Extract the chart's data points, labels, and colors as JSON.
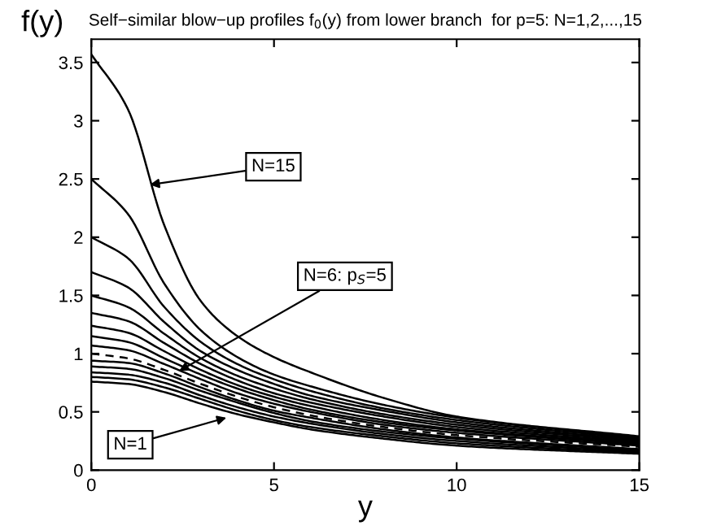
{
  "chart_data": {
    "type": "line",
    "title": "Self−similar blow−up profiles f$_{0}$(y) from lower branch  for p=5: N=1,2,...,15",
    "xlabel": "y",
    "ylabel": "f(y)",
    "x": [
      0,
      1,
      2,
      3,
      4,
      5,
      6,
      8,
      10,
      15
    ],
    "xlim": [
      0,
      15
    ],
    "ylim": [
      0,
      3.7
    ],
    "xticks": [
      0,
      5,
      10,
      15
    ],
    "yticks": [
      0,
      0.5,
      1,
      1.5,
      2,
      2.5,
      3,
      3.5
    ],
    "grid": false,
    "legend": false,
    "marker": "none",
    "series": [
      {
        "color": "#000000",
        "line_style": "solid",
        "values": [
          0.76,
          0.74,
          0.67,
          0.57,
          0.48,
          0.41,
          0.35,
          0.27,
          0.21,
          0.14
        ]
      },
      {
        "color": "#000000",
        "line_style": "solid",
        "values": [
          0.8,
          0.78,
          0.71,
          0.61,
          0.51,
          0.43,
          0.37,
          0.29,
          0.23,
          0.15
        ]
      },
      {
        "color": "#000000",
        "line_style": "solid",
        "values": [
          0.84,
          0.82,
          0.75,
          0.64,
          0.54,
          0.46,
          0.4,
          0.31,
          0.25,
          0.16
        ]
      },
      {
        "color": "#000000",
        "line_style": "solid",
        "values": [
          0.89,
          0.87,
          0.79,
          0.68,
          0.58,
          0.49,
          0.42,
          0.33,
          0.27,
          0.17
        ]
      },
      {
        "color": "#000000",
        "line_style": "solid",
        "values": [
          0.94,
          0.92,
          0.83,
          0.71,
          0.6,
          0.51,
          0.45,
          0.35,
          0.28,
          0.18
        ]
      },
      {
        "color": "#000000",
        "line_style": "dashed",
        "values": [
          1.0,
          0.96,
          0.86,
          0.74,
          0.63,
          0.54,
          0.47,
          0.37,
          0.3,
          0.2
        ]
      },
      {
        "color": "#000000",
        "line_style": "solid",
        "values": [
          1.07,
          1.03,
          0.91,
          0.78,
          0.66,
          0.57,
          0.5,
          0.39,
          0.32,
          0.21
        ]
      },
      {
        "color": "#000000",
        "line_style": "solid",
        "values": [
          1.15,
          1.1,
          0.96,
          0.82,
          0.7,
          0.6,
          0.52,
          0.41,
          0.34,
          0.22
        ]
      },
      {
        "color": "#000000",
        "line_style": "solid",
        "values": [
          1.24,
          1.18,
          1.02,
          0.86,
          0.73,
          0.63,
          0.55,
          0.43,
          0.35,
          0.23
        ]
      },
      {
        "color": "#000000",
        "line_style": "solid",
        "values": [
          1.35,
          1.28,
          1.09,
          0.91,
          0.77,
          0.66,
          0.58,
          0.46,
          0.37,
          0.24
        ]
      },
      {
        "color": "#000000",
        "line_style": "solid",
        "values": [
          1.5,
          1.4,
          1.17,
          0.96,
          0.81,
          0.7,
          0.61,
          0.48,
          0.39,
          0.25
        ]
      },
      {
        "color": "#000000",
        "line_style": "solid",
        "values": [
          1.7,
          1.57,
          1.27,
          1.02,
          0.86,
          0.74,
          0.64,
          0.51,
          0.41,
          0.26
        ]
      },
      {
        "color": "#000000",
        "line_style": "solid",
        "values": [
          2.0,
          1.82,
          1.4,
          1.1,
          0.91,
          0.78,
          0.68,
          0.53,
          0.43,
          0.27
        ]
      },
      {
        "color": "#000000",
        "line_style": "solid",
        "values": [
          2.5,
          2.2,
          1.6,
          1.2,
          0.97,
          0.82,
          0.72,
          0.56,
          0.45,
          0.28
        ]
      },
      {
        "color": "#000000",
        "line_style": "solid",
        "values": [
          3.57,
          3.1,
          2.1,
          1.45,
          1.15,
          0.97,
          0.84,
          0.62,
          0.46,
          0.29
        ]
      }
    ],
    "annotations": [
      {
        "text": "N=15",
        "x": 1.6,
        "y": 2.45
      },
      {
        "text": "N=6: p$_{S}$=5",
        "x": 2.4,
        "y": 0.85
      },
      {
        "text": "N=1",
        "x": 3.7,
        "y": 0.45
      }
    ]
  }
}
